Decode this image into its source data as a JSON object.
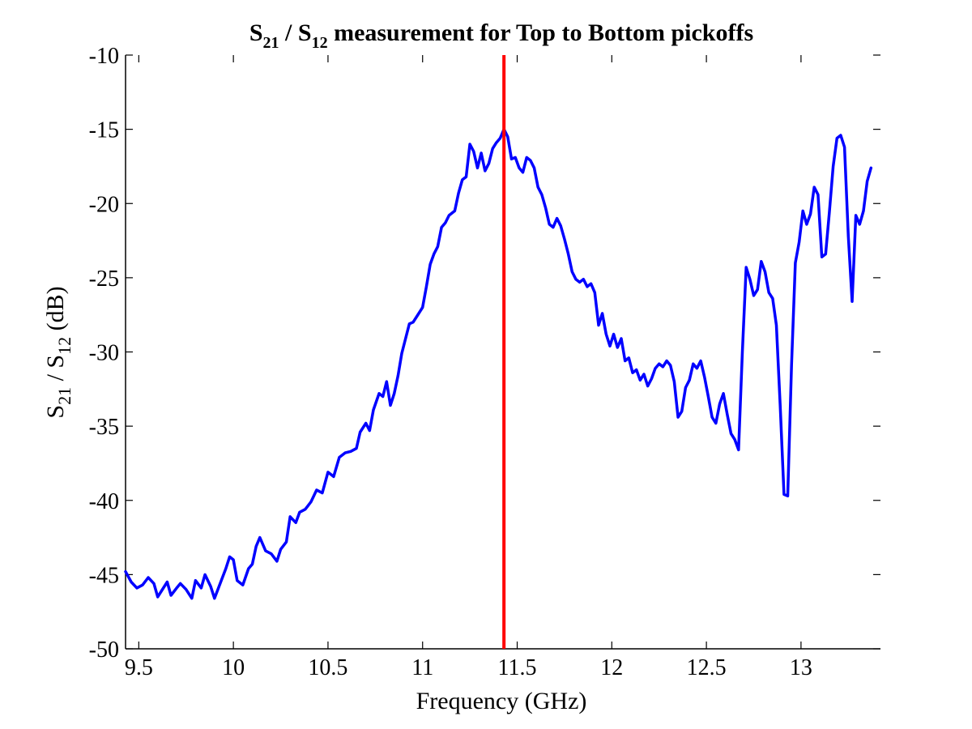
{
  "chart_data": {
    "type": "line",
    "title": {
      "s1": "S",
      "s1_sub": "21",
      "sep": " / ",
      "s2": "S",
      "s2_sub": "12",
      "rest": " measurement for Top to Bottom pickoffs"
    },
    "xlabel": "Frequency (GHz)",
    "ylabel": {
      "s1": "S",
      "s1_sub": "21",
      "sep": " / ",
      "s2": "S",
      "s2_sub": "12",
      "rest": " (dB)"
    },
    "xlim": [
      9.43,
      13.42
    ],
    "ylim": [
      -50,
      -10
    ],
    "x_ticks": [
      9.5,
      10,
      10.5,
      11,
      11.5,
      12,
      12.5,
      13
    ],
    "x_tick_labels": [
      "9.5",
      "10",
      "10.5",
      "11",
      "11.5",
      "12",
      "12.5",
      "13"
    ],
    "y_ticks": [
      -10,
      -15,
      -20,
      -25,
      -30,
      -35,
      -40,
      -45,
      -50
    ],
    "y_tick_labels": [
      "-10",
      "-15",
      "-20",
      "-25",
      "-30",
      "-35",
      "-40",
      "-45",
      "-50"
    ],
    "grid": false,
    "marker_line": {
      "x": 11.43,
      "color": "#ff0000"
    },
    "series": [
      {
        "color": "#0000ff",
        "points": [
          [
            9.43,
            -44.8
          ],
          [
            9.46,
            -45.5
          ],
          [
            9.49,
            -45.9
          ],
          [
            9.52,
            -45.7
          ],
          [
            9.55,
            -45.2
          ],
          [
            9.58,
            -45.6
          ],
          [
            9.6,
            -46.5
          ],
          [
            9.62,
            -46.1
          ],
          [
            9.65,
            -45.5
          ],
          [
            9.67,
            -46.4
          ],
          [
            9.7,
            -45.9
          ],
          [
            9.72,
            -45.6
          ],
          [
            9.75,
            -46.0
          ],
          [
            9.78,
            -46.6
          ],
          [
            9.8,
            -45.4
          ],
          [
            9.83,
            -45.9
          ],
          [
            9.85,
            -45.0
          ],
          [
            9.88,
            -45.8
          ],
          [
            9.9,
            -46.6
          ],
          [
            9.93,
            -45.6
          ],
          [
            9.96,
            -44.6
          ],
          [
            9.98,
            -43.8
          ],
          [
            10.0,
            -44.0
          ],
          [
            10.02,
            -45.4
          ],
          [
            10.05,
            -45.7
          ],
          [
            10.08,
            -44.6
          ],
          [
            10.1,
            -44.3
          ],
          [
            10.12,
            -43.1
          ],
          [
            10.14,
            -42.5
          ],
          [
            10.17,
            -43.4
          ],
          [
            10.2,
            -43.6
          ],
          [
            10.23,
            -44.1
          ],
          [
            10.25,
            -43.3
          ],
          [
            10.28,
            -42.8
          ],
          [
            10.3,
            -41.1
          ],
          [
            10.33,
            -41.5
          ],
          [
            10.35,
            -40.8
          ],
          [
            10.38,
            -40.6
          ],
          [
            10.41,
            -40.1
          ],
          [
            10.44,
            -39.3
          ],
          [
            10.47,
            -39.5
          ],
          [
            10.5,
            -38.1
          ],
          [
            10.53,
            -38.4
          ],
          [
            10.56,
            -37.1
          ],
          [
            10.59,
            -36.8
          ],
          [
            10.62,
            -36.7
          ],
          [
            10.65,
            -36.5
          ],
          [
            10.67,
            -35.4
          ],
          [
            10.7,
            -34.8
          ],
          [
            10.72,
            -35.3
          ],
          [
            10.74,
            -33.9
          ],
          [
            10.77,
            -32.8
          ],
          [
            10.79,
            -33.0
          ],
          [
            10.81,
            -32.0
          ],
          [
            10.83,
            -33.6
          ],
          [
            10.85,
            -32.8
          ],
          [
            10.87,
            -31.6
          ],
          [
            10.89,
            -30.1
          ],
          [
            10.91,
            -29.1
          ],
          [
            10.93,
            -28.1
          ],
          [
            10.95,
            -28.0
          ],
          [
            10.97,
            -27.6
          ],
          [
            11.0,
            -27.0
          ],
          [
            11.02,
            -25.6
          ],
          [
            11.04,
            -24.1
          ],
          [
            11.06,
            -23.4
          ],
          [
            11.08,
            -22.9
          ],
          [
            11.1,
            -21.6
          ],
          [
            11.12,
            -21.3
          ],
          [
            11.14,
            -20.8
          ],
          [
            11.17,
            -20.5
          ],
          [
            11.19,
            -19.3
          ],
          [
            11.21,
            -18.4
          ],
          [
            11.23,
            -18.2
          ],
          [
            11.25,
            -16.0
          ],
          [
            11.27,
            -16.5
          ],
          [
            11.29,
            -17.6
          ],
          [
            11.31,
            -16.6
          ],
          [
            11.33,
            -17.8
          ],
          [
            11.35,
            -17.3
          ],
          [
            11.37,
            -16.3
          ],
          [
            11.39,
            -15.9
          ],
          [
            11.41,
            -15.6
          ],
          [
            11.43,
            -15.0
          ],
          [
            11.45,
            -15.5
          ],
          [
            11.47,
            -17.0
          ],
          [
            11.49,
            -16.9
          ],
          [
            11.51,
            -17.6
          ],
          [
            11.53,
            -17.9
          ],
          [
            11.55,
            -16.9
          ],
          [
            11.57,
            -17.1
          ],
          [
            11.59,
            -17.6
          ],
          [
            11.61,
            -18.9
          ],
          [
            11.63,
            -19.4
          ],
          [
            11.65,
            -20.3
          ],
          [
            11.67,
            -21.4
          ],
          [
            11.69,
            -21.6
          ],
          [
            11.71,
            -21.0
          ],
          [
            11.73,
            -21.5
          ],
          [
            11.75,
            -22.4
          ],
          [
            11.77,
            -23.4
          ],
          [
            11.79,
            -24.6
          ],
          [
            11.81,
            -25.1
          ],
          [
            11.83,
            -25.3
          ],
          [
            11.85,
            -25.1
          ],
          [
            11.87,
            -25.6
          ],
          [
            11.89,
            -25.4
          ],
          [
            11.91,
            -26.0
          ],
          [
            11.93,
            -28.2
          ],
          [
            11.95,
            -27.4
          ],
          [
            11.97,
            -28.8
          ],
          [
            11.99,
            -29.6
          ],
          [
            12.01,
            -28.8
          ],
          [
            12.03,
            -29.7
          ],
          [
            12.05,
            -29.1
          ],
          [
            12.07,
            -30.6
          ],
          [
            12.09,
            -30.4
          ],
          [
            12.11,
            -31.4
          ],
          [
            12.13,
            -31.2
          ],
          [
            12.15,
            -31.9
          ],
          [
            12.17,
            -31.5
          ],
          [
            12.19,
            -32.3
          ],
          [
            12.21,
            -31.8
          ],
          [
            12.23,
            -31.1
          ],
          [
            12.25,
            -30.8
          ],
          [
            12.27,
            -31.0
          ],
          [
            12.29,
            -30.6
          ],
          [
            12.31,
            -30.9
          ],
          [
            12.33,
            -32.0
          ],
          [
            12.35,
            -34.4
          ],
          [
            12.37,
            -34.0
          ],
          [
            12.39,
            -32.4
          ],
          [
            12.41,
            -31.9
          ],
          [
            12.43,
            -30.8
          ],
          [
            12.45,
            -31.1
          ],
          [
            12.47,
            -30.6
          ],
          [
            12.49,
            -31.7
          ],
          [
            12.51,
            -33.0
          ],
          [
            12.53,
            -34.4
          ],
          [
            12.55,
            -34.8
          ],
          [
            12.57,
            -33.5
          ],
          [
            12.59,
            -32.8
          ],
          [
            12.61,
            -34.2
          ],
          [
            12.63,
            -35.5
          ],
          [
            12.65,
            -35.9
          ],
          [
            12.67,
            -36.6
          ],
          [
            12.69,
            -30.0
          ],
          [
            12.71,
            -24.3
          ],
          [
            12.73,
            -25.1
          ],
          [
            12.75,
            -26.2
          ],
          [
            12.77,
            -25.8
          ],
          [
            12.79,
            -23.9
          ],
          [
            12.81,
            -24.6
          ],
          [
            12.83,
            -26.0
          ],
          [
            12.85,
            -26.4
          ],
          [
            12.87,
            -28.2
          ],
          [
            12.89,
            -33.6
          ],
          [
            12.91,
            -39.6
          ],
          [
            12.93,
            -39.7
          ],
          [
            12.95,
            -30.9
          ],
          [
            12.97,
            -24.0
          ],
          [
            12.99,
            -22.6
          ],
          [
            13.01,
            -20.5
          ],
          [
            13.03,
            -21.4
          ],
          [
            13.05,
            -20.7
          ],
          [
            13.07,
            -18.9
          ],
          [
            13.09,
            -19.4
          ],
          [
            13.11,
            -23.6
          ],
          [
            13.13,
            -23.4
          ],
          [
            13.15,
            -20.6
          ],
          [
            13.17,
            -17.5
          ],
          [
            13.19,
            -15.6
          ],
          [
            13.21,
            -15.4
          ],
          [
            13.23,
            -16.2
          ],
          [
            13.25,
            -22.2
          ],
          [
            13.27,
            -26.6
          ],
          [
            13.29,
            -20.8
          ],
          [
            13.31,
            -21.4
          ],
          [
            13.33,
            -20.5
          ],
          [
            13.35,
            -18.5
          ],
          [
            13.37,
            -17.6
          ]
        ]
      }
    ]
  }
}
